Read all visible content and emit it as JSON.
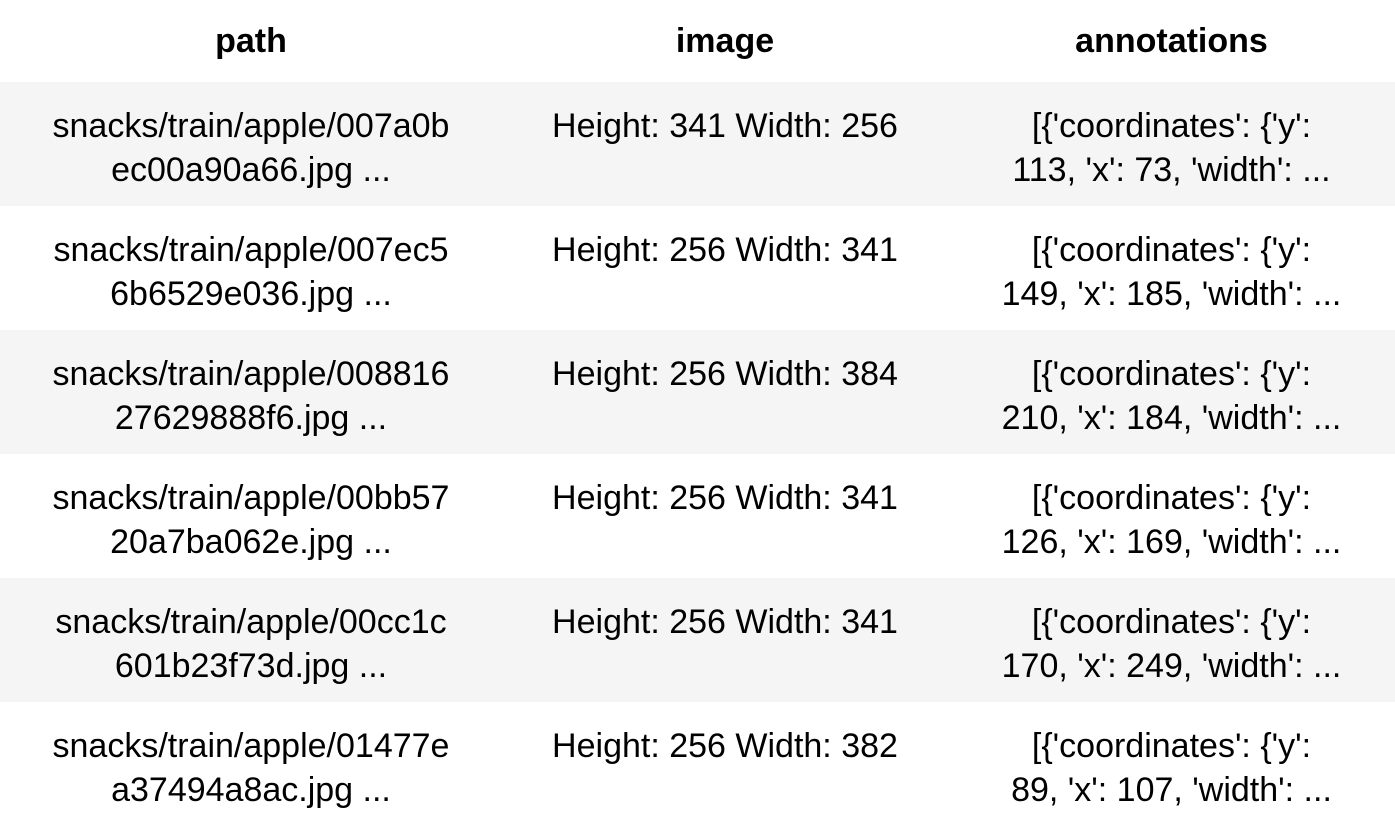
{
  "table": {
    "headers": [
      "path",
      "image",
      "annotations"
    ],
    "rows": [
      {
        "path_line1": "snacks/train/apple/007a0b",
        "path_line2": "ec00a90a66.jpg ...",
        "image": "Height: 341 Width: 256",
        "ann_line1": "[{'coordinates': {'y':",
        "ann_line2": "113, 'x': 73, 'width': ..."
      },
      {
        "path_line1": "snacks/train/apple/007ec5",
        "path_line2": "6b6529e036.jpg ...",
        "image": "Height: 256 Width: 341",
        "ann_line1": "[{'coordinates': {'y':",
        "ann_line2": "149, 'x': 185, 'width': ..."
      },
      {
        "path_line1": "snacks/train/apple/008816",
        "path_line2": "27629888f6.jpg ...",
        "image": "Height: 256 Width: 384",
        "ann_line1": "[{'coordinates': {'y':",
        "ann_line2": "210, 'x': 184, 'width': ..."
      },
      {
        "path_line1": "snacks/train/apple/00bb57",
        "path_line2": "20a7ba062e.jpg ...",
        "image": "Height: 256 Width: 341",
        "ann_line1": "[{'coordinates': {'y':",
        "ann_line2": "126, 'x': 169, 'width': ..."
      },
      {
        "path_line1": "snacks/train/apple/00cc1c",
        "path_line2": "601b23f73d.jpg ...",
        "image": "Height: 256 Width: 341",
        "ann_line1": "[{'coordinates': {'y':",
        "ann_line2": "170, 'x': 249, 'width': ..."
      },
      {
        "path_line1": "snacks/train/apple/01477e",
        "path_line2": "a37494a8ac.jpg ...",
        "image": "Height: 256 Width: 382",
        "ann_line1": "[{'coordinates': {'y':",
        "ann_line2": "89, 'x': 107, 'width': ..."
      }
    ]
  }
}
